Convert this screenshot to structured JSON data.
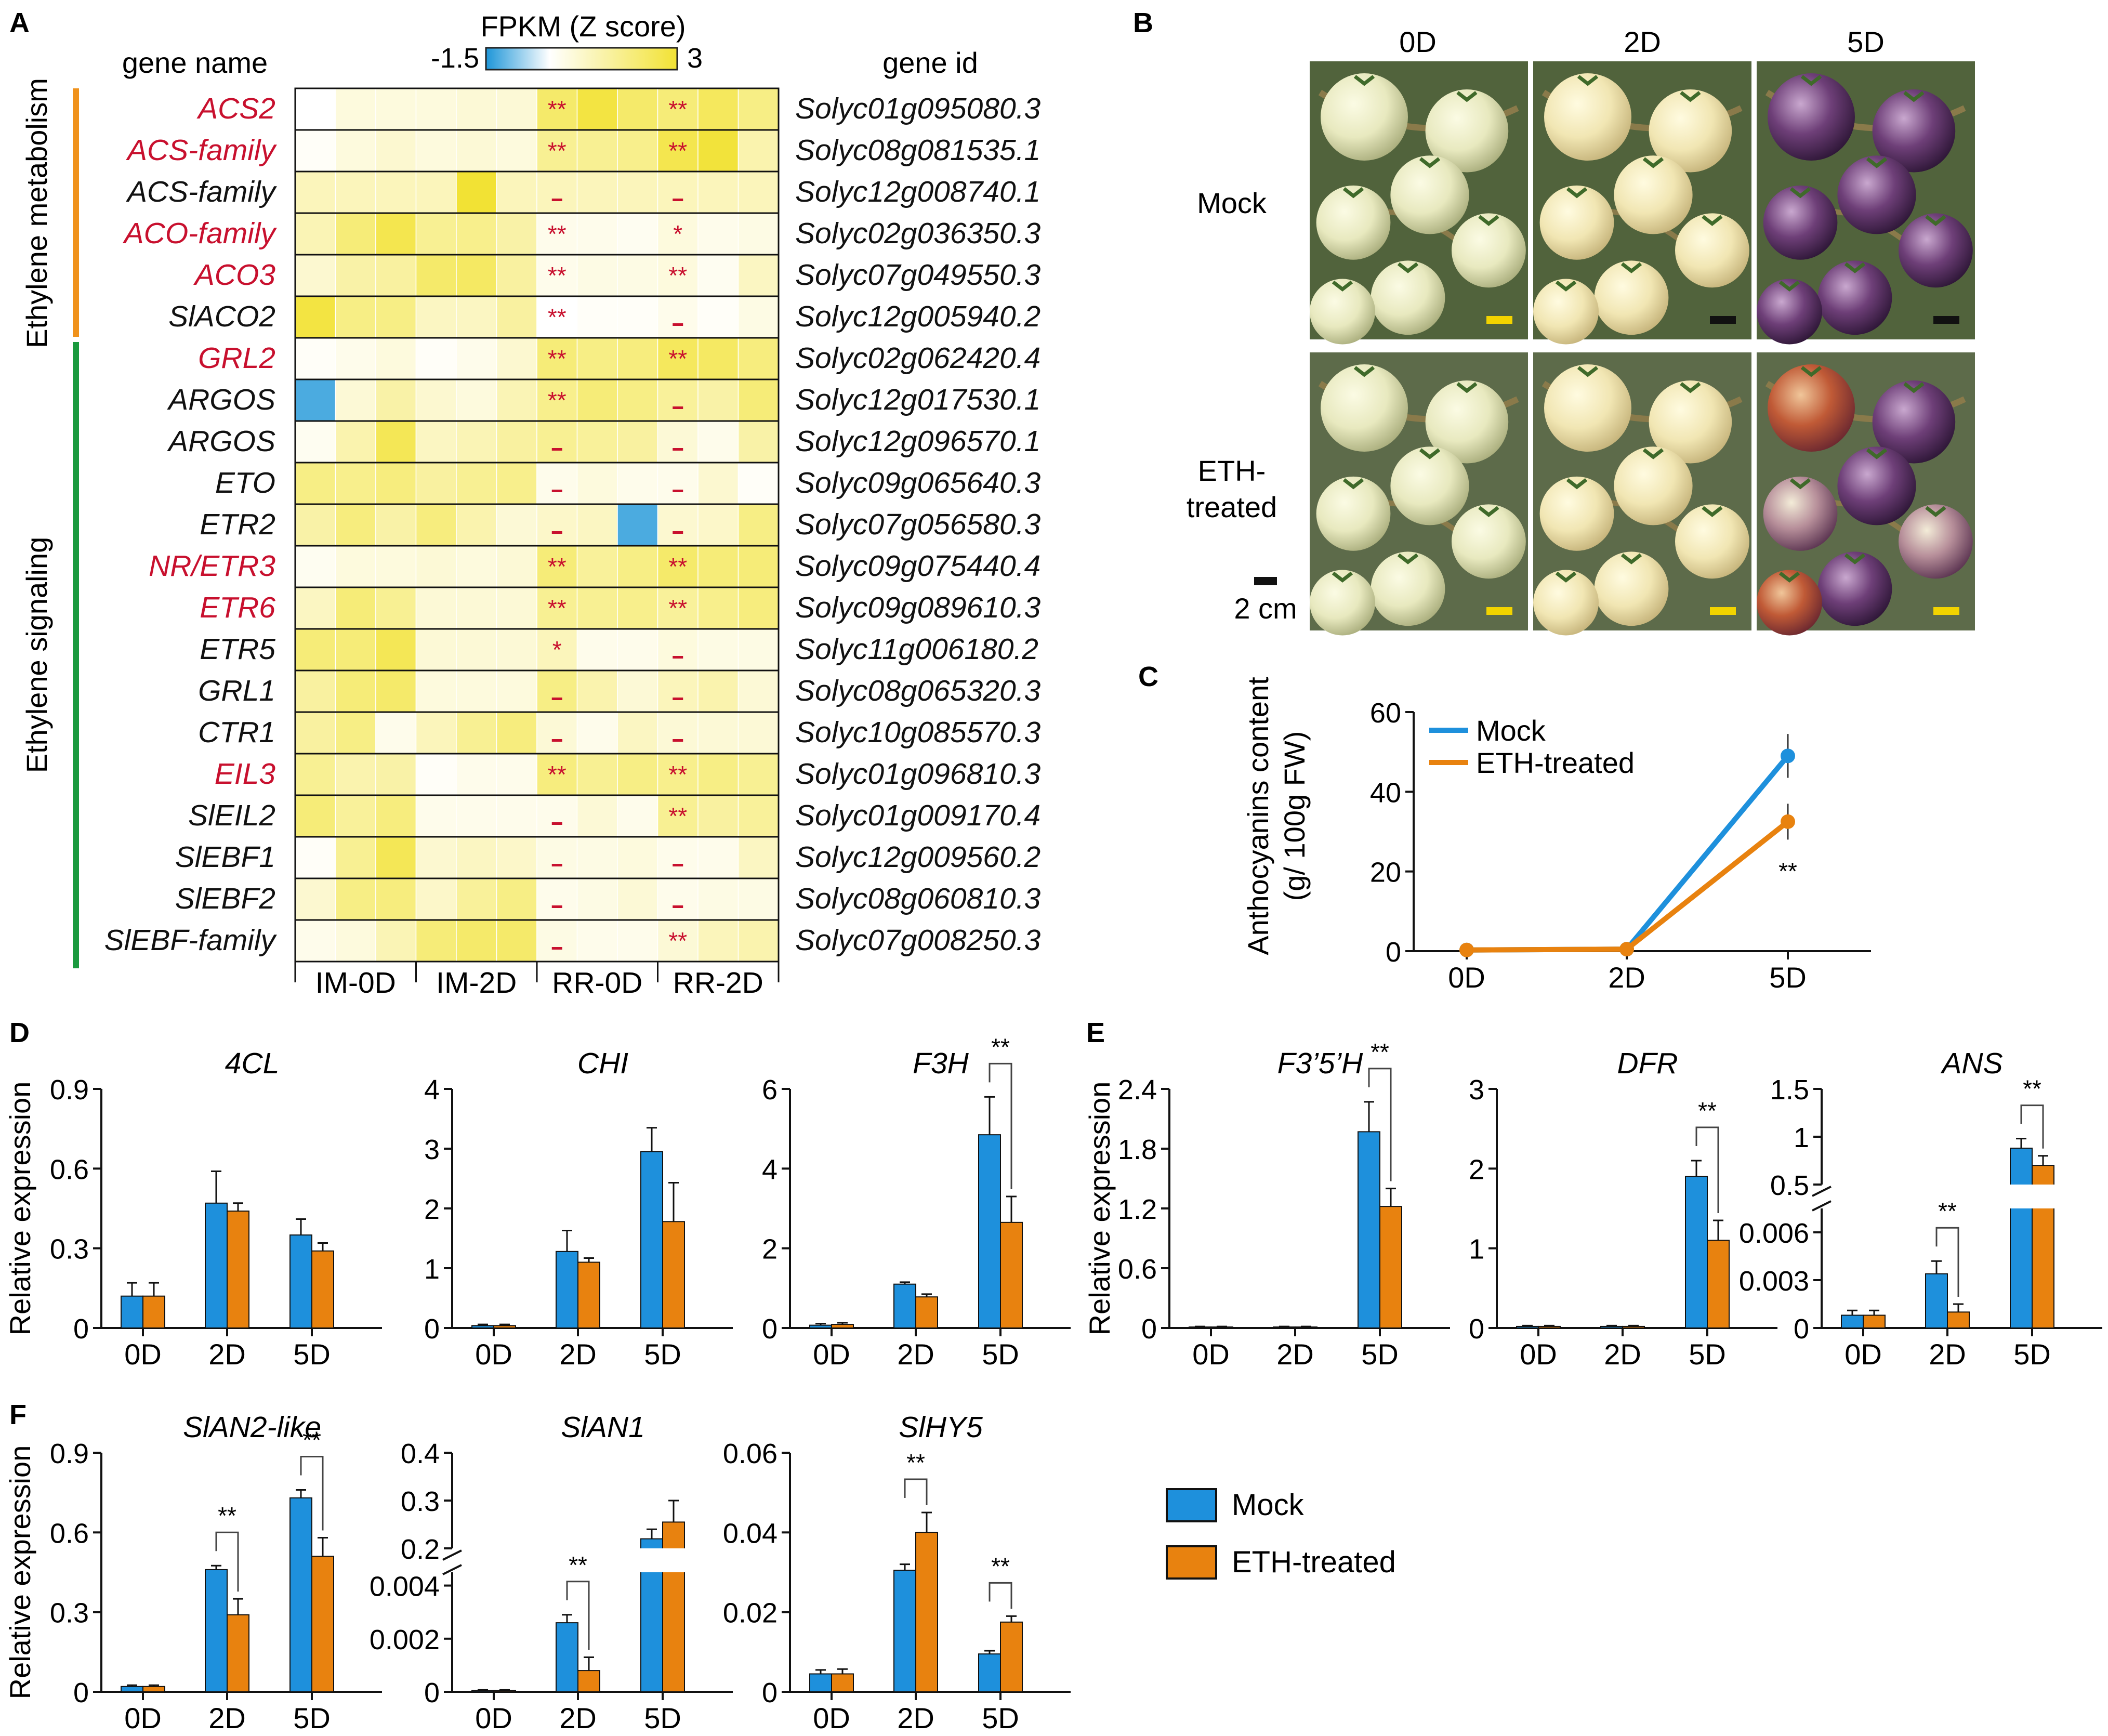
{
  "panel_labels": {
    "a": "A",
    "b": "B",
    "c": "C",
    "d": "D",
    "e": "E",
    "f": "F"
  },
  "colors": {
    "mock": "#1e90dc",
    "eth": "#e8820f",
    "sig": "#c8102e",
    "gene_red": "#c8102e",
    "metab_bar": "#f0921c",
    "signal_bar": "#1a9a3e",
    "heat_low": "#1e96d8",
    "heat_mid": "#ffffff",
    "heat_high": "#f2e234"
  },
  "heatmap": {
    "colorbar_title": "FPKM (Z score)",
    "colorbar_min": "-1.5",
    "colorbar_max": "3",
    "zmin": -1.5,
    "zmax": 3,
    "gene_name_header": "gene name",
    "gene_id_header": "gene id",
    "group_metabolism": "Ethylene metabolism",
    "group_signaling": "Ethylene signaling",
    "columns": [
      "IM-0D",
      "IM-2D",
      "RR-0D",
      "RR-2D"
    ],
    "genes": [
      {
        "name": "ACS2",
        "id": "Solyc01g095080.3",
        "red": true,
        "sig0": "**",
        "sig2": "**",
        "z": [
          0.0,
          0.5,
          0.5,
          0.5,
          0.6,
          0.6,
          2.2,
          2.8,
          2.2,
          2.0,
          2.4,
          1.8
        ]
      },
      {
        "name": "ACS-family",
        "id": "Solyc08g081535.1",
        "red": true,
        "sig0": "**",
        "sig2": "**",
        "z": [
          0.1,
          0.5,
          0.7,
          0.5,
          0.6,
          0.5,
          1.6,
          1.6,
          1.7,
          2.6,
          2.9,
          1.2
        ]
      },
      {
        "name": "ACS-family",
        "id": "Solyc12g008740.1",
        "red": false,
        "sig0": "-",
        "sig2": "-",
        "z": [
          1.0,
          1.0,
          1.0,
          1.0,
          3.0,
          1.0,
          1.0,
          1.0,
          1.0,
          1.0,
          1.0,
          1.0
        ]
      },
      {
        "name": "ACO-family",
        "id": "Solyc02g036350.3",
        "red": true,
        "sig0": "**",
        "sig2": "*",
        "z": [
          1.1,
          2.0,
          2.6,
          1.6,
          1.7,
          1.3,
          0.3,
          0.3,
          0.2,
          0.5,
          0.3,
          0.4
        ]
      },
      {
        "name": "ACO3",
        "id": "Solyc07g049550.3",
        "red": true,
        "sig0": "**",
        "sig2": "**",
        "z": [
          0.7,
          1.3,
          1.4,
          2.2,
          2.3,
          1.4,
          0.3,
          0.4,
          0.4,
          0.5,
          0.2,
          0.9
        ]
      },
      {
        "name": "SlACO2",
        "id": "Solyc12g005940.2",
        "red": false,
        "sig0": "**",
        "sig2": "-",
        "z": [
          2.8,
          1.8,
          1.8,
          0.9,
          0.9,
          1.4,
          0.0,
          0.1,
          0.1,
          0.3,
          0.1,
          0.4
        ]
      },
      {
        "name": "GRL2",
        "id": "Solyc02g062420.4",
        "red": true,
        "sig0": "**",
        "sig2": "**",
        "z": [
          0.1,
          0.3,
          0.5,
          0.1,
          0.3,
          0.7,
          2.0,
          1.8,
          1.9,
          2.4,
          2.3,
          1.9
        ]
      },
      {
        "name": "ARGOS",
        "id": "Solyc12g017530.1",
        "red": false,
        "sig0": "**",
        "sig2": "-",
        "z": [
          -1.2,
          0.6,
          1.3,
          0.7,
          0.5,
          1.1,
          1.7,
          2.0,
          1.8,
          1.5,
          1.3,
          2.0
        ]
      },
      {
        "name": "ARGOS",
        "id": "Solyc12g096570.1",
        "red": false,
        "sig0": "-",
        "sig2": "-",
        "z": [
          0.2,
          1.2,
          2.5,
          0.9,
          1.1,
          1.4,
          1.6,
          1.5,
          1.4,
          0.6,
          0.3,
          1.3
        ]
      },
      {
        "name": "ETO",
        "id": "Solyc09g065640.3",
        "red": false,
        "sig0": "-",
        "sig2": "-",
        "z": [
          1.8,
          1.7,
          1.9,
          1.4,
          1.6,
          1.7,
          0.3,
          0.5,
          0.3,
          0.3,
          0.7,
          0.1
        ]
      },
      {
        "name": "ETR2",
        "id": "Solyc07g056580.3",
        "red": false,
        "sig0": "-",
        "sig2": "-",
        "z": [
          1.3,
          1.9,
          1.3,
          1.9,
          1.2,
          0.6,
          0.8,
          0.9,
          -1.2,
          0.7,
          0.8,
          1.8
        ]
      },
      {
        "name": "NR/ETR3",
        "id": "Solyc09g075440.4",
        "red": true,
        "sig0": "**",
        "sig2": "**",
        "z": [
          0.2,
          0.5,
          0.5,
          0.6,
          0.5,
          0.6,
          2.0,
          1.5,
          1.8,
          2.2,
          2.0,
          2.0
        ]
      },
      {
        "name": "ETR6",
        "id": "Solyc09g089610.3",
        "red": true,
        "sig0": "**",
        "sig2": "**",
        "z": [
          0.9,
          2.0,
          1.6,
          0.6,
          0.6,
          0.6,
          1.6,
          1.6,
          1.7,
          1.5,
          1.7,
          1.9
        ]
      },
      {
        "name": "ETR5",
        "id": "Solyc11g006180.2",
        "red": false,
        "sig0": "*",
        "sig2": "-",
        "z": [
          2.0,
          2.0,
          2.5,
          0.6,
          0.6,
          0.6,
          1.0,
          0.3,
          0.3,
          0.5,
          0.4,
          0.4
        ]
      },
      {
        "name": "GRL1",
        "id": "Solyc08g065320.3",
        "red": false,
        "sig0": "-",
        "sig2": "-",
        "z": [
          1.4,
          2.0,
          2.2,
          0.5,
          0.5,
          0.5,
          1.8,
          1.2,
          0.6,
          1.0,
          1.2,
          0.6
        ]
      },
      {
        "name": "CTR1",
        "id": "Solyc10g085570.3",
        "red": false,
        "sig0": "-",
        "sig2": "-",
        "z": [
          1.4,
          1.8,
          0.3,
          1.0,
          1.6,
          1.9,
          0.6,
          0.3,
          0.9,
          0.6,
          0.6,
          0.6
        ]
      },
      {
        "name": "EIL3",
        "id": "Solyc01g096810.3",
        "red": true,
        "sig0": "**",
        "sig2": "**",
        "z": [
          1.6,
          1.2,
          1.3,
          0.1,
          0.3,
          0.3,
          1.9,
          1.6,
          1.8,
          1.7,
          1.8,
          1.6
        ]
      },
      {
        "name": "SlEIL2",
        "id": "Solyc01g009170.4",
        "red": false,
        "sig0": "-",
        "sig2": "**",
        "z": [
          2.0,
          1.5,
          1.9,
          0.3,
          0.3,
          0.3,
          0.3,
          0.6,
          0.3,
          1.6,
          1.4,
          1.5
        ]
      },
      {
        "name": "SlEBF1",
        "id": "Solyc12g009560.2",
        "red": false,
        "sig0": "-",
        "sig2": "-",
        "z": [
          0.1,
          1.6,
          2.5,
          0.7,
          0.9,
          0.8,
          0.4,
          0.4,
          0.5,
          0.3,
          0.3,
          0.9
        ]
      },
      {
        "name": "SlEBF2",
        "id": "Solyc08g060810.3",
        "red": false,
        "sig0": "-",
        "sig2": "-",
        "z": [
          0.7,
          1.8,
          1.9,
          0.8,
          1.5,
          1.8,
          0.3,
          0.4,
          0.6,
          0.3,
          0.4,
          0.4
        ]
      },
      {
        "name": "SlEBF-family",
        "id": "Solyc07g008250.3",
        "red": false,
        "sig0": "-",
        "sig2": "**",
        "z": [
          0.3,
          0.5,
          1.1,
          2.0,
          2.2,
          2.2,
          0.4,
          0.3,
          0.3,
          0.6,
          1.0,
          1.2
        ]
      }
    ]
  },
  "photos": {
    "columns": [
      "0D",
      "2D",
      "5D"
    ],
    "rows": [
      "Mock",
      "ETH-treated"
    ],
    "row2_line1": "ETH-",
    "row2_line2": "treated",
    "scale_label": "2 cm"
  },
  "chart_data": [
    {
      "panel": "C",
      "type": "line",
      "title": "",
      "ylabel_line1": "Anthocyanins content",
      "ylabel_line2": "(g/ 100g FW)",
      "categories": [
        "0D",
        "2D",
        "5D"
      ],
      "ylim": [
        0,
        60
      ],
      "yticks": [
        0,
        20,
        40,
        60
      ],
      "series": [
        {
          "name": "Mock",
          "values": [
            0.3,
            0.5,
            49
          ],
          "err": [
            0.3,
            0.3,
            5.5
          ]
        },
        {
          "name": "ETH-treated",
          "values": [
            0.3,
            0.5,
            32.5
          ],
          "err": [
            0.3,
            0.3,
            4.5
          ]
        }
      ],
      "sig": [
        {
          "index": 2,
          "label": "**"
        }
      ]
    },
    {
      "panel": "D",
      "type": "bar",
      "title": "4CL",
      "ylabel": "Relative expression",
      "categories": [
        "0D",
        "2D",
        "5D"
      ],
      "ylim": [
        0,
        0.9
      ],
      "yticks": [
        0,
        0.3,
        0.6,
        0.9
      ],
      "series": [
        {
          "name": "Mock",
          "values": [
            0.12,
            0.47,
            0.35
          ],
          "err": [
            0.05,
            0.12,
            0.06
          ]
        },
        {
          "name": "ETH-treated",
          "values": [
            0.12,
            0.44,
            0.29
          ],
          "err": [
            0.05,
            0.03,
            0.03
          ]
        }
      ],
      "sig": []
    },
    {
      "panel": "D",
      "type": "bar",
      "title": "CHI",
      "categories": [
        "0D",
        "2D",
        "5D"
      ],
      "ylim": [
        0,
        4
      ],
      "yticks": [
        0,
        1,
        2,
        3,
        4
      ],
      "series": [
        {
          "name": "Mock",
          "values": [
            0.04,
            1.28,
            2.95
          ],
          "err": [
            0.02,
            0.35,
            0.4
          ]
        },
        {
          "name": "ETH-treated",
          "values": [
            0.04,
            1.1,
            1.78
          ],
          "err": [
            0.02,
            0.07,
            0.65
          ]
        }
      ],
      "sig": []
    },
    {
      "panel": "D",
      "type": "bar",
      "title": "F3H",
      "categories": [
        "0D",
        "2D",
        "5D"
      ],
      "ylim": [
        0,
        6
      ],
      "yticks": [
        0,
        2,
        4,
        6
      ],
      "series": [
        {
          "name": "Mock",
          "values": [
            0.07,
            1.1,
            4.85
          ],
          "err": [
            0.04,
            0.05,
            0.95
          ]
        },
        {
          "name": "ETH-treated",
          "values": [
            0.09,
            0.78,
            2.65
          ],
          "err": [
            0.04,
            0.07,
            0.65
          ]
        }
      ],
      "sig": [
        {
          "index": 2,
          "label": "**"
        }
      ]
    },
    {
      "panel": "E",
      "type": "bar",
      "title": "F3’5’H",
      "ylabel": "Relative expression",
      "categories": [
        "0D",
        "2D",
        "5D"
      ],
      "ylim": [
        0,
        2.4
      ],
      "yticks": [
        0,
        0.6,
        1.2,
        1.8,
        2.4
      ],
      "series": [
        {
          "name": "Mock",
          "values": [
            0.01,
            0.01,
            1.97
          ],
          "err": [
            0.005,
            0.005,
            0.3
          ]
        },
        {
          "name": "ETH-treated",
          "values": [
            0.01,
            0.01,
            1.22
          ],
          "err": [
            0.005,
            0.005,
            0.18
          ]
        }
      ],
      "sig": [
        {
          "index": 2,
          "label": "**"
        }
      ]
    },
    {
      "panel": "E",
      "type": "bar",
      "title": "DFR",
      "categories": [
        "0D",
        "2D",
        "5D"
      ],
      "ylim": [
        0,
        3
      ],
      "yticks": [
        0,
        1,
        2,
        3
      ],
      "series": [
        {
          "name": "Mock",
          "values": [
            0.02,
            0.02,
            1.9
          ],
          "err": [
            0.01,
            0.01,
            0.2
          ]
        },
        {
          "name": "ETH-treated",
          "values": [
            0.02,
            0.02,
            1.1
          ],
          "err": [
            0.01,
            0.01,
            0.25
          ]
        }
      ],
      "sig": [
        {
          "index": 2,
          "label": "**"
        }
      ]
    },
    {
      "panel": "E",
      "type": "bar",
      "title": "ANS",
      "categories": [
        "0D",
        "2D",
        "5D"
      ],
      "broken_axis": true,
      "ylim_lower": [
        0,
        0.0075
      ],
      "ylim_upper": [
        0.5,
        1.5
      ],
      "yticks_lower": [
        0,
        0.003,
        0.006
      ],
      "yticks_upper": [
        0.5,
        1,
        1.5
      ],
      "series": [
        {
          "name": "Mock",
          "values": [
            0.0008,
            0.0034,
            0.88
          ],
          "err": [
            0.0003,
            0.0008,
            0.1
          ]
        },
        {
          "name": "ETH-treated",
          "values": [
            0.0008,
            0.001,
            0.7
          ],
          "err": [
            0.0003,
            0.0005,
            0.1
          ]
        }
      ],
      "sig": [
        {
          "index": 1,
          "label": "**"
        },
        {
          "index": 2,
          "label": "**"
        }
      ]
    },
    {
      "panel": "F",
      "type": "bar",
      "title": "SlAN2-like",
      "ylabel": "Relative expression",
      "categories": [
        "0D",
        "2D",
        "5D"
      ],
      "ylim": [
        0,
        0.9
      ],
      "yticks": [
        0,
        0.3,
        0.6,
        0.9
      ],
      "series": [
        {
          "name": "Mock",
          "values": [
            0.02,
            0.46,
            0.73
          ],
          "err": [
            0.005,
            0.015,
            0.03
          ]
        },
        {
          "name": "ETH-treated",
          "values": [
            0.02,
            0.29,
            0.51
          ],
          "err": [
            0.005,
            0.06,
            0.07
          ]
        }
      ],
      "sig": [
        {
          "index": 1,
          "label": "**"
        },
        {
          "index": 2,
          "label": "**"
        }
      ]
    },
    {
      "panel": "F",
      "type": "bar",
      "title": "SlAN1",
      "categories": [
        "0D",
        "2D",
        "5D"
      ],
      "broken_axis": true,
      "ylim_lower": [
        0,
        0.0045
      ],
      "ylim_upper": [
        0.2,
        0.4
      ],
      "yticks_lower": [
        0,
        0.002,
        0.004
      ],
      "yticks_upper": [
        0.2,
        0.3,
        0.4
      ],
      "series": [
        {
          "name": "Mock",
          "values": [
            5e-05,
            0.0026,
            0.22
          ],
          "err": [
            2e-05,
            0.0003,
            0.02
          ]
        },
        {
          "name": "ETH-treated",
          "values": [
            5e-05,
            0.0008,
            0.255
          ],
          "err": [
            2e-05,
            0.0005,
            0.045
          ]
        }
      ],
      "sig": [
        {
          "index": 1,
          "label": "**"
        }
      ]
    },
    {
      "panel": "F",
      "type": "bar",
      "title": "SlHY5",
      "categories": [
        "0D",
        "2D",
        "5D"
      ],
      "ylim": [
        0,
        0.06
      ],
      "yticks": [
        0,
        0.02,
        0.04,
        0.06
      ],
      "series": [
        {
          "name": "Mock",
          "values": [
            0.0045,
            0.0305,
            0.0095
          ],
          "err": [
            0.001,
            0.0015,
            0.0008
          ]
        },
        {
          "name": "ETH-treated",
          "values": [
            0.0045,
            0.04,
            0.0175
          ],
          "err": [
            0.0012,
            0.005,
            0.0015
          ]
        }
      ],
      "sig": [
        {
          "index": 1,
          "label": "**"
        },
        {
          "index": 2,
          "label": "**"
        }
      ]
    }
  ],
  "legend": {
    "mock": "Mock",
    "eth": "ETH-treated"
  }
}
